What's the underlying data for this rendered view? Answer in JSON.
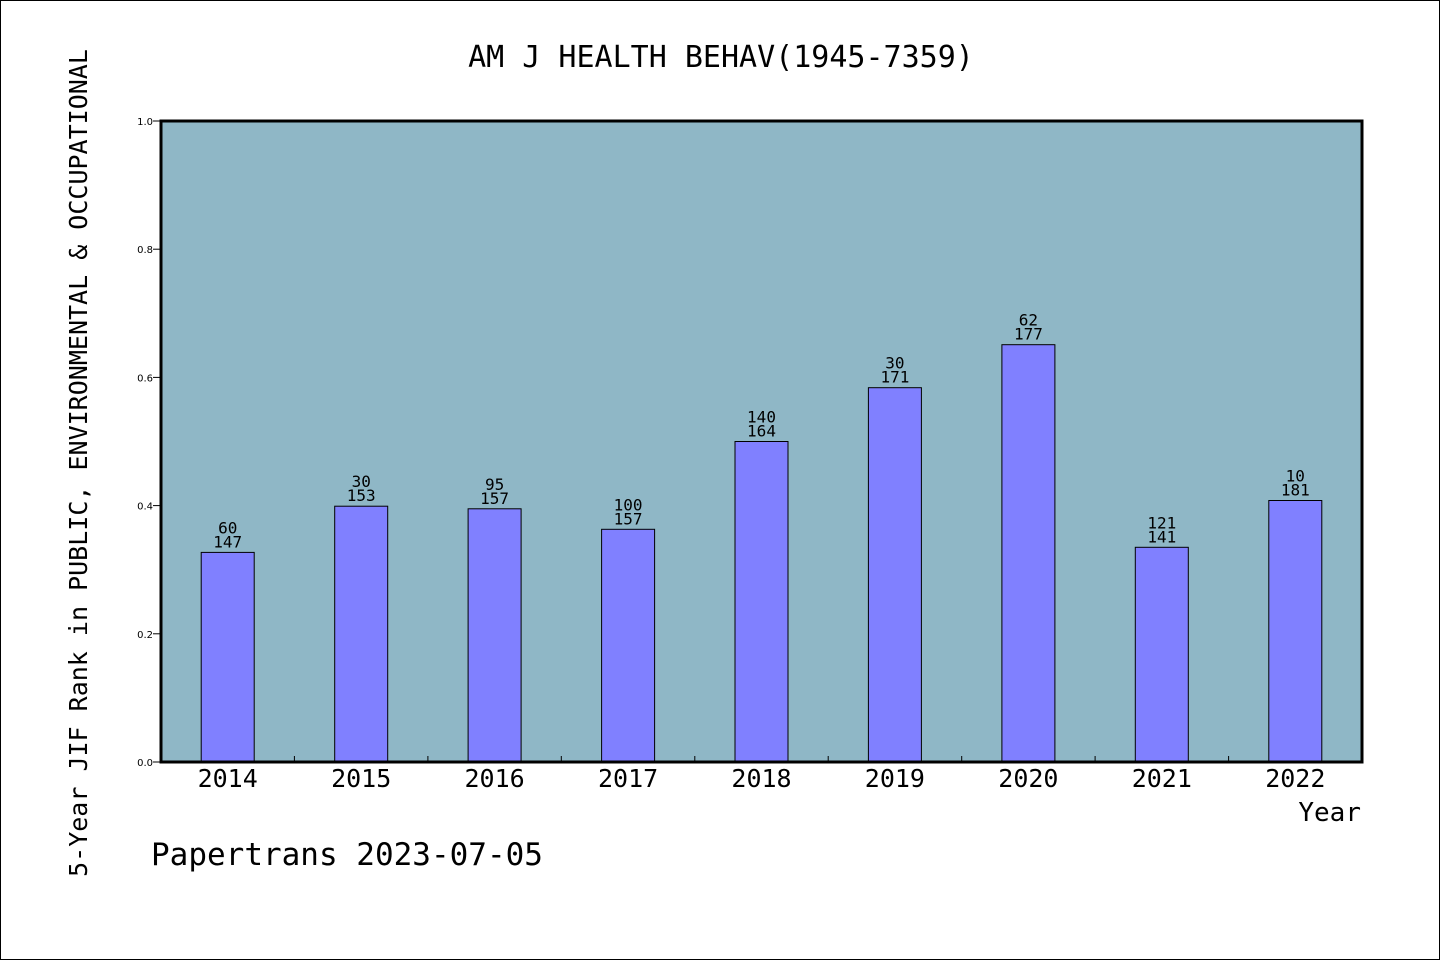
{
  "chart_data": {
    "type": "bar",
    "title": "AM J HEALTH BEHAV(1945-7359)",
    "ylabel": "5-Year JIF Rank in PUBLIC, ENVIRONMENTAL & OCCUPATIONAL",
    "xlabel": "Year",
    "categories": [
      "2014",
      "2015",
      "2016",
      "2017",
      "2018",
      "2019",
      "2020",
      "2021",
      "2022"
    ],
    "values": [
      0.327,
      0.399,
      0.395,
      0.363,
      0.5,
      0.584,
      0.651,
      0.335,
      0.408
    ],
    "rank": [
      "60",
      "30",
      "95",
      "100",
      "140",
      "30",
      "62",
      "121",
      "10"
    ],
    "total": [
      "147",
      "153",
      "157",
      "157",
      "164",
      "171",
      "177",
      "141",
      "181"
    ],
    "ylim": [
      0,
      1.0
    ],
    "yticks": [
      "0.0",
      "0.2",
      "0.4",
      "0.6",
      "0.8",
      "1.0"
    ],
    "grid": false,
    "colors": {
      "plot_background": "#8fb7c6",
      "bar_fill": "#8080ff",
      "bar_stroke": "#000000"
    }
  },
  "footer": {
    "credit": "Papertrans 2023-07-05"
  }
}
